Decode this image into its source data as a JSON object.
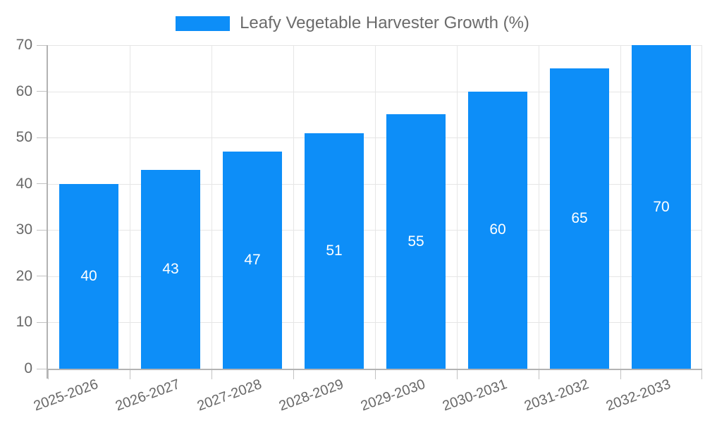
{
  "chart_data": {
    "type": "bar",
    "title": "Leafy Vegetable Harvester Growth (%)",
    "categories": [
      "2025-2026",
      "2026-2027",
      "2027-2028",
      "2028-2029",
      "2029-2030",
      "2030-2031",
      "2031-2032",
      "2032-2033"
    ],
    "values": [
      40,
      43,
      47,
      51,
      55,
      60,
      65,
      70
    ],
    "xlabel": "",
    "ylabel": "",
    "ylim": [
      0,
      70
    ],
    "ytick_step": 10,
    "yticks": [
      "0",
      "10",
      "20",
      "30",
      "40",
      "50",
      "60",
      "70"
    ],
    "grid": true,
    "value_labels_shown": true,
    "x_label_rotation_deg": 20,
    "legend_position": "top-center",
    "colors": {
      "bar": "#0d8ef8",
      "value_label": "#ffffff",
      "axis_text": "#686868",
      "legend_text": "#6b6b6b",
      "gridline": "#e6e6e6",
      "axis_line": "#b3b3b3",
      "tick": "#c2c2c2",
      "background": "#ffffff"
    }
  },
  "legend": {
    "items": [
      {
        "label": "Leafy Vegetable Harvester Growth (%)",
        "swatch_color": "#0d8ef8"
      }
    ]
  }
}
